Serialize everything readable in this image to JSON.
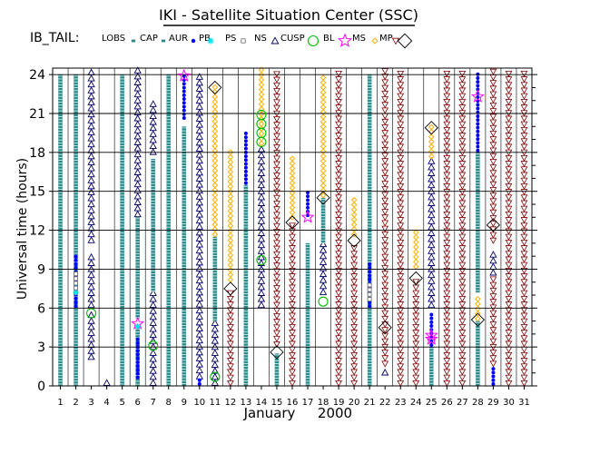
{
  "chart_data": {
    "type": "scatter",
    "title": "IKI - Satellite Situation Center (SSC)",
    "region_label": "IB_TAIL:",
    "xlabel_month": "January",
    "xlabel_year": "2000",
    "ylabel": "Universal time  (hours)",
    "ylim": [
      0,
      24.5
    ],
    "y_ticks": [
      0,
      3,
      6,
      9,
      12,
      15,
      18,
      21,
      24
    ],
    "x_days": [
      1,
      2,
      3,
      4,
      5,
      6,
      7,
      8,
      9,
      10,
      11,
      12,
      13,
      14,
      15,
      16,
      17,
      18,
      19,
      20,
      21,
      22,
      23,
      24,
      25,
      26,
      27,
      28,
      29,
      30,
      31
    ],
    "grid": "horizontal-and-vertical",
    "legend_position": "top",
    "legend": [
      {
        "key": "LOBS",
        "label": "LOBS",
        "color": "#2e8b8b",
        "symbol": "dot-column"
      },
      {
        "key": "CAP",
        "label": "CAP",
        "color": "#2e8b8b",
        "symbol": "small-square"
      },
      {
        "key": "AUR",
        "label": "AUR",
        "color": "#0000ff",
        "symbol": "filled-circle"
      },
      {
        "key": "PB",
        "label": "PB",
        "color": "#00e5ee",
        "symbol": "asterisk"
      },
      {
        "key": "PS",
        "label": "PS",
        "color": "#777777",
        "symbol": "open-square"
      },
      {
        "key": "NS",
        "label": "NS",
        "color": "#000066",
        "symbol": "open-triangle"
      },
      {
        "key": "CUSP",
        "label": "CUSP",
        "color": "#00bb00",
        "symbol": "open-circle"
      },
      {
        "key": "BL",
        "label": "BL",
        "color": "#ff00ff",
        "symbol": "star"
      },
      {
        "key": "MS",
        "label": "MS",
        "color": "#ffb000",
        "symbol": "open-diamond-small"
      },
      {
        "key": "MP",
        "label": "MP",
        "color": "#800000",
        "symbol": "inverted-triangle"
      },
      {
        "key": "BS",
        "label": "",
        "color": "#000000",
        "symbol": "open-diamond"
      }
    ],
    "columns": [
      {
        "day": 1,
        "segments": [
          {
            "r": "CAP",
            "from": 0,
            "to": 24
          }
        ]
      },
      {
        "day": 2,
        "segments": [
          {
            "r": "CAP",
            "from": 0,
            "to": 24
          },
          {
            "r": "AUR",
            "from": 6,
            "to": 10
          },
          {
            "r": "PS",
            "from": 7,
            "to": 8.8
          }
        ],
        "markers": [
          {
            "r": "PB",
            "y": 7.2
          }
        ]
      },
      {
        "day": 3,
        "segments": [
          {
            "r": "NS",
            "from": 2,
            "to": 5.5
          },
          {
            "r": "NS",
            "from": 6,
            "to": 10.2
          },
          {
            "r": "NS",
            "from": 11,
            "to": 24.3
          }
        ],
        "markers": [
          {
            "r": "CUSP",
            "y": 5.6
          }
        ]
      },
      {
        "day": 4,
        "segments": [
          {
            "r": "NS",
            "from": 0,
            "to": 0.6
          }
        ]
      },
      {
        "day": 5,
        "segments": [
          {
            "r": "CAP",
            "from": 0,
            "to": 24
          }
        ]
      },
      {
        "day": 6,
        "segments": [
          {
            "r": "CAP",
            "from": 0,
            "to": 4.5
          },
          {
            "r": "AUR",
            "from": 0.5,
            "to": 3.8
          },
          {
            "r": "CAP",
            "from": 5.2,
            "to": 13
          },
          {
            "r": "NS",
            "from": 13,
            "to": 24.3
          }
        ],
        "markers": [
          {
            "r": "BL",
            "y": 4.8
          },
          {
            "r": "PB",
            "y": 4.6
          }
        ]
      },
      {
        "day": 7,
        "segments": [
          {
            "r": "NS",
            "from": 0,
            "to": 7.2
          },
          {
            "r": "CAP",
            "from": 7.3,
            "to": 17.5
          },
          {
            "r": "NS",
            "from": 17.8,
            "to": 22
          }
        ],
        "markers": [
          {
            "r": "CUSP",
            "y": 3.1
          }
        ]
      },
      {
        "day": 8,
        "segments": [
          {
            "r": "CAP",
            "from": 0,
            "to": 24
          }
        ]
      },
      {
        "day": 9,
        "segments": [
          {
            "r": "CAP",
            "from": 0,
            "to": 20
          },
          {
            "r": "AUR",
            "from": 20.5,
            "to": 24
          }
        ],
        "markers": [
          {
            "r": "BL",
            "y": 23.9
          }
        ]
      },
      {
        "day": 10,
        "segments": [
          {
            "r": "NS",
            "from": 0.5,
            "to": 24.2
          },
          {
            "r": "AUR",
            "from": 0,
            "to": 0.5
          }
        ]
      },
      {
        "day": 11,
        "segments": [
          {
            "r": "NS",
            "from": 0,
            "to": 5
          },
          {
            "r": "CAP",
            "from": 5,
            "to": 11.5
          },
          {
            "r": "MS",
            "from": 11.5,
            "to": 23
          }
        ],
        "markers": [
          {
            "r": "CUSP",
            "y": 0.7
          },
          {
            "r": "BS",
            "y": 23
          }
        ]
      },
      {
        "day": 12,
        "segments": [
          {
            "r": "MP",
            "from": 0,
            "to": 7.5
          },
          {
            "r": "MS",
            "from": 8,
            "to": 18
          }
        ],
        "markers": [
          {
            "r": "BS",
            "y": 7.5
          }
        ]
      },
      {
        "day": 13,
        "segments": [
          {
            "r": "CAP",
            "from": 0,
            "to": 15.5
          },
          {
            "r": "AUR",
            "from": 15.5,
            "to": 19.5
          }
        ]
      },
      {
        "day": 14,
        "segments": [
          {
            "r": "NS",
            "from": 6,
            "to": 18.5
          },
          {
            "r": "MS",
            "from": 18.5,
            "to": 24.5
          }
        ],
        "markers": [
          {
            "r": "CUSP",
            "y": 9.7
          },
          {
            "r": "CUSP",
            "y": 18.8
          },
          {
            "r": "CUSP",
            "y": 19.5
          },
          {
            "r": "CUSP",
            "y": 20.2
          },
          {
            "r": "CUSP",
            "y": 20.9
          }
        ]
      },
      {
        "day": 15,
        "segments": [
          {
            "r": "CAP",
            "from": 0,
            "to": 2.5
          },
          {
            "r": "MP",
            "from": 3,
            "to": 24.3
          }
        ],
        "markers": [
          {
            "r": "BS",
            "y": 2.6
          }
        ]
      },
      {
        "day": 16,
        "segments": [
          {
            "r": "MP",
            "from": 0,
            "to": 12.5
          },
          {
            "r": "MS",
            "from": 12.8,
            "to": 17.5
          }
        ],
        "markers": [
          {
            "r": "BS",
            "y": 12.6
          }
        ]
      },
      {
        "day": 17,
        "segments": [
          {
            "r": "CAP",
            "from": 0,
            "to": 11
          },
          {
            "r": "AUR",
            "from": 13,
            "to": 15
          }
        ],
        "markers": [
          {
            "r": "BL",
            "y": 13
          }
        ]
      },
      {
        "day": 18,
        "segments": [
          {
            "r": "NS",
            "from": 7,
            "to": 11
          },
          {
            "r": "CAP",
            "from": 11,
            "to": 14.5
          },
          {
            "r": "MS",
            "from": 14.5,
            "to": 24
          }
        ],
        "markers": [
          {
            "r": "CUSP",
            "y": 6.5
          },
          {
            "r": "BS",
            "y": 14.5
          }
        ]
      },
      {
        "day": 19,
        "segments": [
          {
            "r": "MP",
            "from": 0,
            "to": 24.3
          }
        ]
      },
      {
        "day": 20,
        "segments": [
          {
            "r": "MP",
            "from": 0,
            "to": 11
          },
          {
            "r": "MS",
            "from": 11.5,
            "to": 14.5
          }
        ],
        "markers": [
          {
            "r": "BS",
            "y": 11.2
          }
        ]
      },
      {
        "day": 21,
        "segments": [
          {
            "r": "CAP",
            "from": 0,
            "to": 24
          },
          {
            "r": "AUR",
            "from": 6,
            "to": 9.5
          },
          {
            "r": "PS",
            "from": 6.5,
            "to": 8
          }
        ]
      },
      {
        "day": 22,
        "segments": [
          {
            "r": "NS",
            "from": 0.8,
            "to": 1.2
          },
          {
            "r": "MP",
            "from": 1.5,
            "to": 24.3
          }
        ],
        "markers": [
          {
            "r": "BS",
            "y": 4.5
          }
        ]
      },
      {
        "day": 23,
        "segments": [
          {
            "r": "MP",
            "from": 0,
            "to": 24.3
          }
        ]
      },
      {
        "day": 24,
        "segments": [
          {
            "r": "MP",
            "from": 0,
            "to": 8
          },
          {
            "r": "MS",
            "from": 9,
            "to": 12
          }
        ],
        "markers": [
          {
            "r": "BS",
            "y": 8.3
          }
        ]
      },
      {
        "day": 25,
        "segments": [
          {
            "r": "CAP",
            "from": 0,
            "to": 3
          },
          {
            "r": "AUR",
            "from": 3,
            "to": 5.5
          },
          {
            "r": "NS",
            "from": 6,
            "to": 17.5
          },
          {
            "r": "MS",
            "from": 17.5,
            "to": 20
          }
        ],
        "markers": [
          {
            "r": "BL",
            "y": 3.6
          },
          {
            "r": "BL",
            "y": 3.9
          },
          {
            "r": "BS",
            "y": 19.9
          }
        ]
      },
      {
        "day": 26,
        "segments": [
          {
            "r": "MP",
            "from": 0,
            "to": 24.3
          }
        ]
      },
      {
        "day": 27,
        "segments": [
          {
            "r": "MP",
            "from": 0,
            "to": 24.3
          }
        ]
      },
      {
        "day": 28,
        "segments": [
          {
            "r": "CAP",
            "from": 0,
            "to": 5
          },
          {
            "r": "MS",
            "from": 5,
            "to": 7
          },
          {
            "r": "CAP",
            "from": 7.2,
            "to": 18
          },
          {
            "r": "AUR",
            "from": 18,
            "to": 24
          }
        ],
        "markers": [
          {
            "r": "BS",
            "y": 5.1
          },
          {
            "r": "BL",
            "y": 22.3
          }
        ]
      },
      {
        "day": 29,
        "segments": [
          {
            "r": "AUR",
            "from": 0,
            "to": 1.5
          },
          {
            "r": "MP",
            "from": 1.5,
            "to": 8.5
          },
          {
            "r": "NS",
            "from": 8.5,
            "to": 10.5
          },
          {
            "r": "MP",
            "from": 11,
            "to": 24.3
          }
        ],
        "markers": [
          {
            "r": "BS",
            "y": 12.4
          }
        ]
      },
      {
        "day": 30,
        "segments": [
          {
            "r": "MP",
            "from": 0,
            "to": 24.3
          }
        ]
      },
      {
        "day": 31,
        "segments": [
          {
            "r": "MP",
            "from": 0,
            "to": 24.3
          }
        ]
      }
    ]
  }
}
